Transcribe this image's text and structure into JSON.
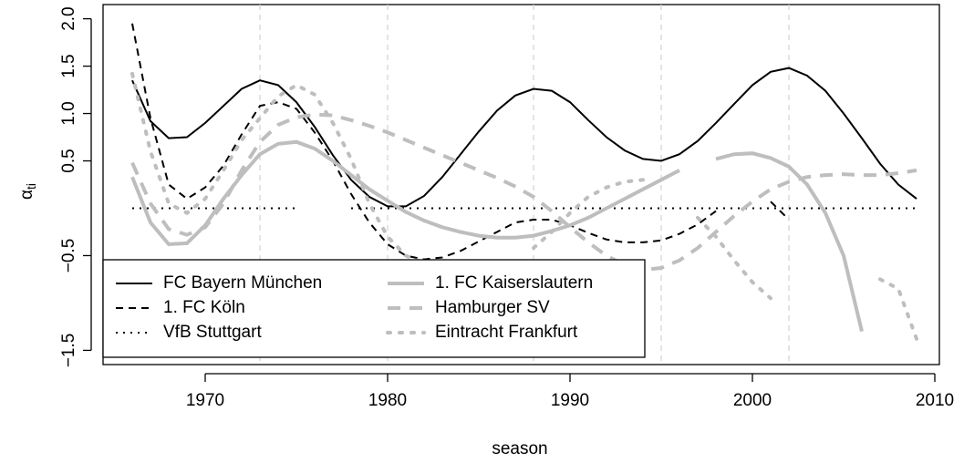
{
  "chart_data": {
    "type": "line",
    "x_label": "season",
    "y_label": "α",
    "y_label_sub": "ti",
    "x": [
      1966,
      1967,
      1968,
      1969,
      1970,
      1971,
      1972,
      1973,
      1974,
      1975,
      1976,
      1977,
      1978,
      1979,
      1980,
      1981,
      1982,
      1983,
      1984,
      1985,
      1986,
      1987,
      1988,
      1989,
      1990,
      1991,
      1992,
      1993,
      1994,
      1995,
      1996,
      1997,
      1998,
      1999,
      2000,
      2001,
      2002,
      2003,
      2004,
      2005,
      2006,
      2007,
      2008,
      2009
    ],
    "xlim": [
      1964.4,
      2010.25
    ],
    "xticks": [
      1970,
      1980,
      1990,
      2000,
      2010
    ],
    "ylim": [
      -1.65,
      2.15
    ],
    "yticks": [
      {
        "value": -1.5,
        "label": "−1.5"
      },
      {
        "value": -0.5,
        "label": "−0.5"
      },
      0.5,
      {
        "value": 1,
        "label": "1.0"
      },
      1.5,
      {
        "value": 2,
        "label": "2.0"
      }
    ],
    "vlines": [
      1973,
      1980,
      1988,
      1995,
      2002
    ],
    "series": [
      {
        "name": "FC Bayern München",
        "color": "#000000",
        "dash": "solid",
        "values": [
          1.35,
          0.92,
          0.74,
          0.75,
          0.9,
          1.08,
          1.26,
          1.35,
          1.3,
          1.12,
          0.86,
          0.56,
          0.3,
          0.12,
          0.02,
          0.02,
          0.13,
          0.33,
          0.57,
          0.81,
          1.03,
          1.19,
          1.26,
          1.24,
          1.12,
          0.93,
          0.75,
          0.61,
          0.52,
          0.5,
          0.57,
          0.71,
          0.9,
          1.1,
          1.3,
          1.44,
          1.48,
          1.4,
          1.24,
          1.0,
          0.74,
          0.47,
          0.25,
          0.1
        ]
      },
      {
        "name": "1. FC Köln",
        "color": "#000000",
        "dash": "dashed",
        "values": [
          1.95,
          0.95,
          0.25,
          0.1,
          0.22,
          0.45,
          0.78,
          1.08,
          1.12,
          1.05,
          0.8,
          0.5,
          0.15,
          -0.15,
          -0.38,
          -0.5,
          -0.54,
          -0.52,
          -0.45,
          -0.35,
          -0.25,
          -0.15,
          -0.12,
          -0.12,
          -0.18,
          -0.26,
          -0.33,
          -0.36,
          -0.36,
          -0.34,
          -0.27,
          -0.17,
          -0.03,
          null,
          null,
          0.07,
          -0.12,
          null,
          null,
          null,
          null,
          null,
          null,
          null
        ]
      },
      {
        "name": "VfB Stuttgart",
        "color": "#000000",
        "dash": "dotted",
        "values": [
          0,
          0,
          0,
          0,
          0,
          0,
          0,
          0,
          0,
          0,
          null,
          null,
          0,
          0,
          0,
          0,
          0,
          0,
          0,
          0,
          0,
          0,
          0,
          0,
          0,
          0,
          0,
          0,
          0,
          0,
          0,
          0,
          0,
          0,
          0,
          0,
          0,
          0,
          0,
          0,
          0,
          0,
          0,
          0
        ]
      },
      {
        "name": "1. FC Kaiserslautern",
        "color": "#bebebe",
        "dash": "solid",
        "values": [
          0.33,
          -0.15,
          -0.38,
          -0.37,
          -0.18,
          0.1,
          0.35,
          0.57,
          0.68,
          0.7,
          0.63,
          0.5,
          0.35,
          0.2,
          0.08,
          -0.04,
          -0.13,
          -0.2,
          -0.25,
          -0.29,
          -0.31,
          -0.31,
          -0.29,
          -0.24,
          -0.18,
          -0.1,
          0.0,
          0.1,
          0.2,
          0.3,
          0.4,
          null,
          0.52,
          0.57,
          0.58,
          0.53,
          0.44,
          0.25,
          -0.05,
          -0.5,
          -1.3,
          null,
          null,
          null
        ]
      },
      {
        "name": "Hamburger SV",
        "color": "#bebebe",
        "dash": "dashed",
        "values": [
          0.48,
          0.05,
          -0.22,
          -0.28,
          -0.2,
          0.05,
          0.4,
          0.7,
          0.88,
          0.96,
          0.99,
          0.98,
          0.93,
          0.87,
          0.8,
          0.72,
          0.64,
          0.56,
          0.48,
          0.4,
          0.32,
          0.23,
          0.12,
          -0.03,
          -0.2,
          -0.36,
          -0.5,
          -0.6,
          -0.65,
          -0.63,
          -0.55,
          -0.42,
          -0.25,
          -0.08,
          0.07,
          0.2,
          0.28,
          0.33,
          0.35,
          0.36,
          0.35,
          0.35,
          0.37,
          0.4
        ]
      },
      {
        "name": "Eintracht Frankfurt",
        "color": "#bebebe",
        "dash": "dotted",
        "values": [
          1.42,
          0.6,
          0.05,
          -0.05,
          0.1,
          0.4,
          0.72,
          0.95,
          1.18,
          1.3,
          1.2,
          0.9,
          0.52,
          0.05,
          -0.3,
          -0.5,
          -0.58,
          null,
          null,
          null,
          null,
          null,
          -0.42,
          -0.25,
          -0.05,
          0.12,
          0.22,
          0.28,
          0.3,
          null,
          null,
          -0.1,
          -0.3,
          -0.55,
          -0.78,
          -0.95,
          null,
          null,
          null,
          null,
          null,
          -0.75,
          -0.85,
          -1.38
        ]
      }
    ]
  }
}
